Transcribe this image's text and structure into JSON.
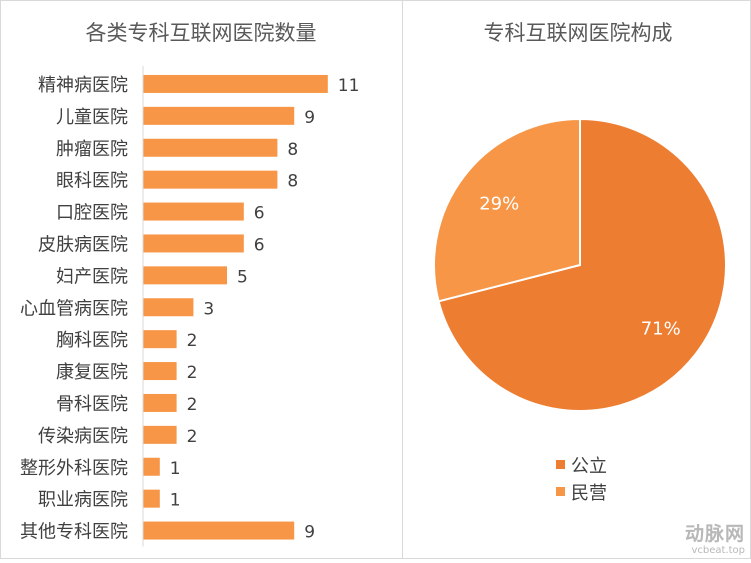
{
  "chart_data": [
    {
      "type": "bar",
      "orientation": "horizontal",
      "title": "各类专科互联网医院数量",
      "categories": [
        "精神病医院",
        "儿童医院",
        "肿瘤医院",
        "眼科医院",
        "口腔医院",
        "皮肤病医院",
        "妇产医院",
        "心血管病医院",
        "胸科医院",
        "康复医院",
        "骨科医院",
        "传染病医院",
        "整形外科医院",
        "职业病医院",
        "其他专科医院"
      ],
      "values": [
        11,
        9,
        8,
        8,
        6,
        6,
        5,
        3,
        2,
        2,
        2,
        2,
        1,
        1,
        9
      ],
      "grid": false,
      "data_labels": true,
      "color": "#f79646"
    },
    {
      "type": "pie",
      "title": "专科互联网医院构成",
      "slices": [
        {
          "name": "公立",
          "value": 71,
          "label": "71%",
          "color": "#ed7d31"
        },
        {
          "name": "民营",
          "value": 29,
          "label": "29%",
          "color": "#f79646"
        }
      ],
      "legend_position": "bottom"
    }
  ],
  "watermark": {
    "main": "动脉网",
    "sub": "vcbeat.top"
  }
}
